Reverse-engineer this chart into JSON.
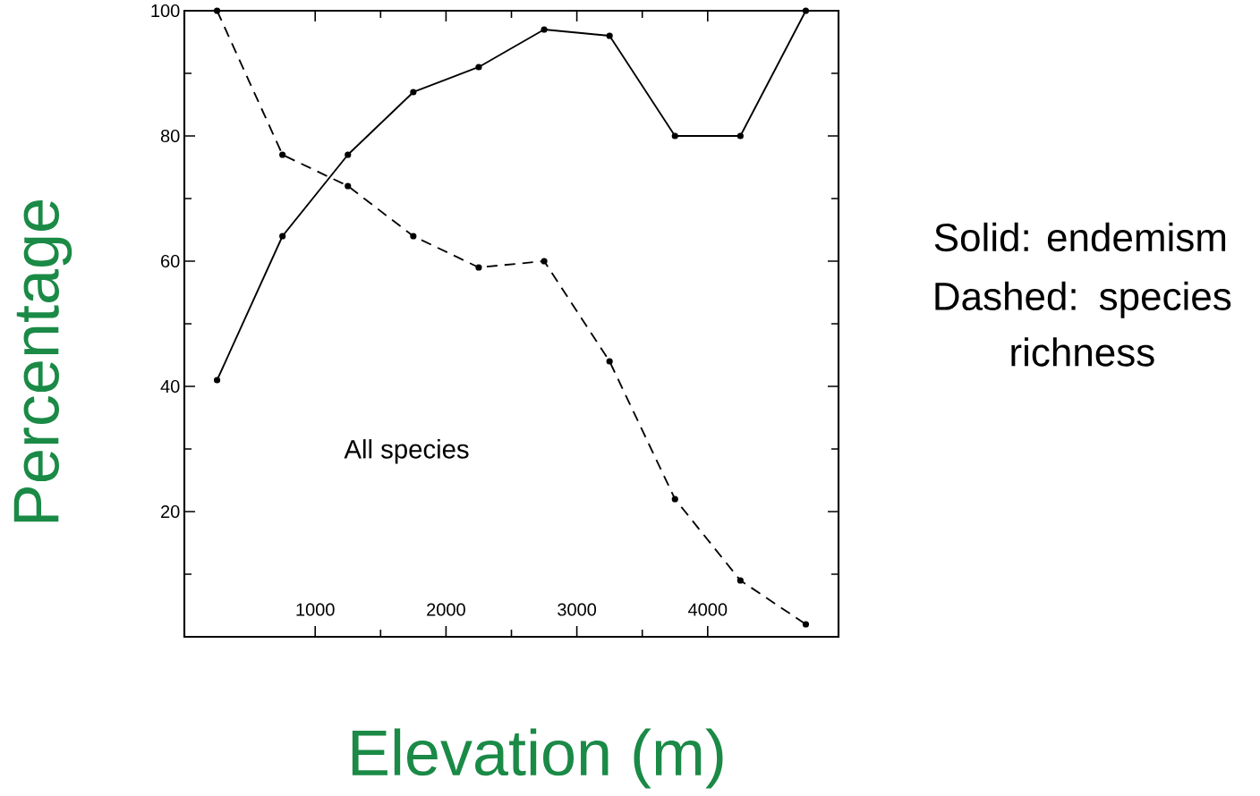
{
  "chart_data": {
    "type": "line",
    "xlabel": "Elevation (m)",
    "ylabel": "Percentage",
    "x": [
      250,
      750,
      1250,
      1750,
      2250,
      2750,
      3250,
      3750,
      4250,
      4750
    ],
    "series": [
      {
        "color": "#000000",
        "line_style": "solid",
        "values": [
          41,
          64,
          77,
          87,
          91,
          97,
          96,
          80,
          80,
          100
        ]
      },
      {
        "color": "#000000",
        "line_style": "dashed",
        "values": [
          100,
          77,
          72,
          64,
          59,
          60,
          44,
          22,
          9,
          2
        ]
      }
    ],
    "xlim": [
      0,
      5000
    ],
    "ylim": [
      0,
      100
    ],
    "xticks": [
      1000,
      2000,
      3000,
      4000
    ],
    "yticks": [
      {
        "value": 0,
        "label": null
      },
      20,
      40,
      60,
      80,
      100
    ],
    "marker": "circle",
    "grid": false,
    "annotations": [
      "All species",
      "Solid: endemism",
      "Dashed: species richness"
    ]
  }
}
